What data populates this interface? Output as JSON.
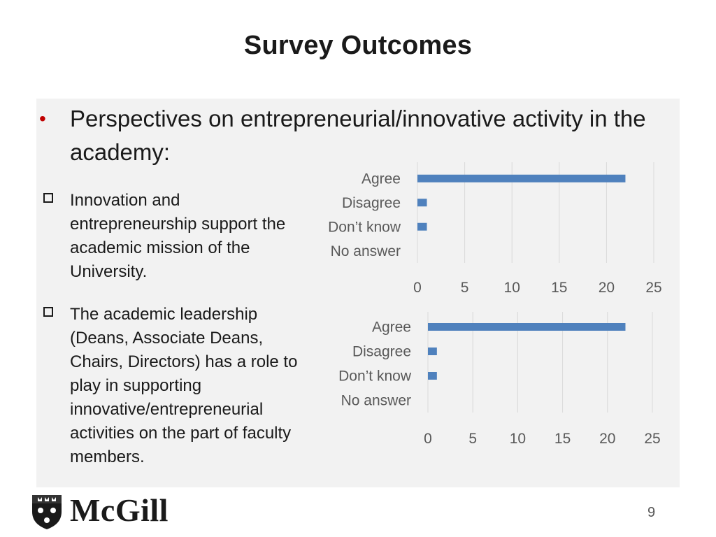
{
  "title": "Survey Outcomes",
  "main_bullet": "Perspectives on entrepreneurial/innovative activity in the academy:",
  "sub_bullets": [
    "Innovation and entrepreneurship support the academic mission of the University.",
    "The academic leadership (Deans, Associate Deans, Chairs, Directors)  has a role to play in supporting innovative/entrepreneurial activities on the part of faculty members."
  ],
  "logo_text": "McGill",
  "page_number": "9",
  "colors": {
    "bar": "#4f81bd",
    "bullet": "#c00000",
    "panel": "#f2f2f2"
  },
  "chart_data": [
    {
      "type": "bar",
      "orientation": "horizontal",
      "categories": [
        "Agree",
        "Disagree",
        "Don’t know",
        "No answer"
      ],
      "values": [
        22,
        1,
        1,
        0
      ],
      "xlim": [
        0,
        25
      ],
      "xticks": [
        "0",
        "5",
        "10",
        "15",
        "20",
        "25"
      ],
      "grid": true
    },
    {
      "type": "bar",
      "orientation": "horizontal",
      "categories": [
        "Agree",
        "Disagree",
        "Don’t know",
        "No answer"
      ],
      "values": [
        22,
        1,
        1,
        0
      ],
      "xlim": [
        0,
        25
      ],
      "xticks": [
        "0",
        "5",
        "10",
        "15",
        "20",
        "25"
      ],
      "grid": true
    }
  ]
}
